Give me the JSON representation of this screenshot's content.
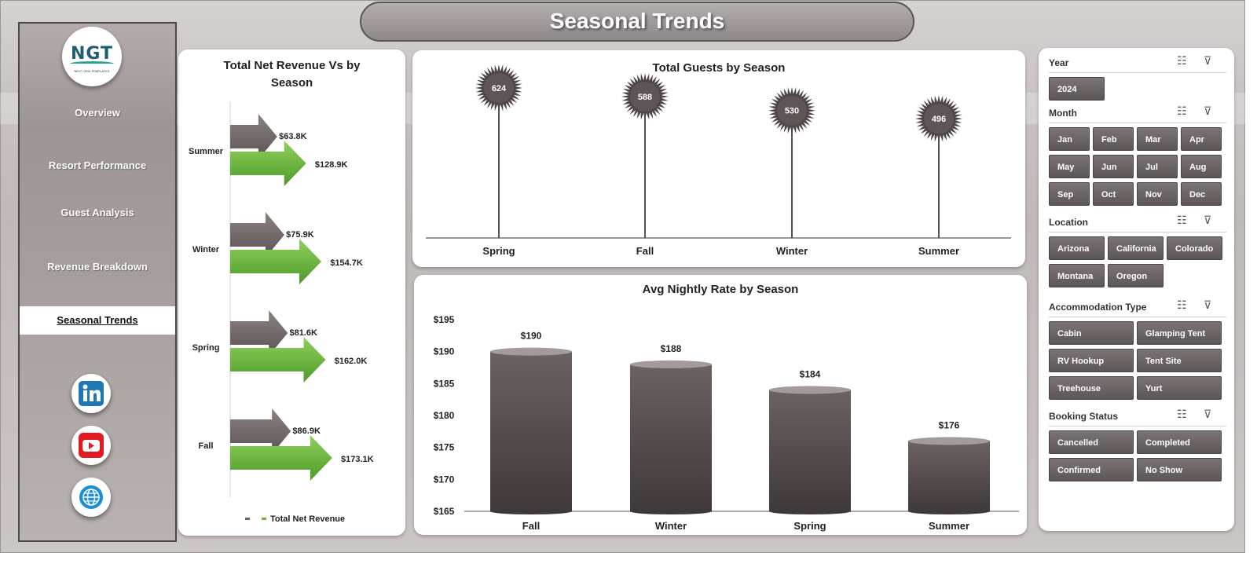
{
  "app": {
    "title": "Seasonal Trends"
  },
  "logo": {
    "text": "NGT",
    "subtitle": "NEXT GEN TEMPLATES"
  },
  "nav": {
    "items": [
      {
        "label": "Overview"
      },
      {
        "label": "Resort Performance"
      },
      {
        "label": "Guest Analysis"
      },
      {
        "label": "Revenue Breakdown"
      },
      {
        "label": "Seasonal Trends"
      }
    ]
  },
  "social": [
    "linkedin-icon",
    "youtube-icon",
    "globe-icon"
  ],
  "charts": {
    "revenue": {
      "title_line1": "Total Net Revenue Vs  by",
      "title_line2": "Season",
      "legend_label": "Total Net Revenue"
    },
    "guests": {
      "title": "Total Guests by Season"
    },
    "nightly": {
      "title": "Avg Nightly Rate by Season"
    }
  },
  "chart_data": [
    {
      "type": "bar",
      "title": "Total Net Revenue Vs  by Season",
      "categories": [
        "Summer",
        "Winter",
        "Spring",
        "Fall"
      ],
      "series": [
        {
          "values": [
            63.8,
            75.9,
            81.6,
            86.9
          ],
          "labels": [
            "$63.8K",
            "$75.9K",
            "$81.6K",
            "$86.9K"
          ],
          "color": "#6b6262"
        },
        {
          "name": "Total Net Revenue",
          "values": [
            128.9,
            154.7,
            162.0,
            173.1
          ],
          "labels": [
            "$128.9K",
            "$154.7K",
            "$162.0K",
            "$173.1K"
          ],
          "color": "#6cb33f"
        }
      ],
      "orientation": "horizontal",
      "legend": "bottom"
    },
    {
      "type": "bar",
      "title": "Total Guests by Season",
      "categories": [
        "Spring",
        "Fall",
        "Winter",
        "Summer"
      ],
      "values": [
        624,
        588,
        530,
        496
      ],
      "labels": [
        "624",
        "588",
        "530",
        "496"
      ],
      "style": "lollipop",
      "color": "#5a4f50"
    },
    {
      "type": "bar",
      "title": "Avg Nightly Rate by Season",
      "categories": [
        "Fall",
        "Winter",
        "Spring",
        "Summer"
      ],
      "values": [
        190,
        188,
        184,
        176
      ],
      "labels": [
        "$190",
        "$188",
        "$184",
        "$176"
      ],
      "ylim": [
        165,
        195
      ],
      "yticks": [
        "$195",
        "$190",
        "$185",
        "$180",
        "$175",
        "$170",
        "$165"
      ],
      "ytick_values": [
        195,
        190,
        185,
        180,
        175,
        170,
        165
      ],
      "style": "cylinder",
      "color": "#5f5757"
    }
  ],
  "filters": {
    "year": {
      "title": "Year",
      "options": [
        "2024"
      ]
    },
    "month": {
      "title": "Month",
      "options": [
        "Jan",
        "Feb",
        "Mar",
        "Apr",
        "May",
        "Jun",
        "Jul",
        "Aug",
        "Sep",
        "Oct",
        "Nov",
        "Dec"
      ]
    },
    "location": {
      "title": "Location",
      "options": [
        "Arizona",
        "California",
        "Colorado",
        "Montana",
        "Oregon"
      ]
    },
    "accommodation": {
      "title": "Accommodation Type",
      "options": [
        "Cabin",
        "Glamping Tent",
        "RV Hookup",
        "Tent Site",
        "Treehouse",
        "Yurt"
      ]
    },
    "booking": {
      "title": "Booking Status",
      "options": [
        "Cancelled",
        "Completed",
        "Confirmed",
        "No Show"
      ]
    }
  }
}
